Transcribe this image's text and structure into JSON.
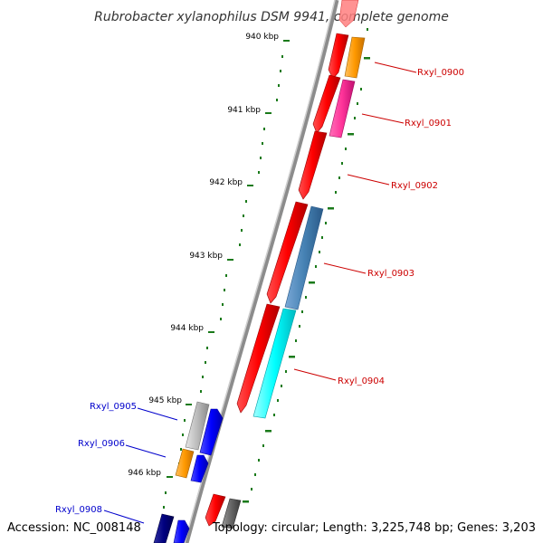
{
  "title": "Rubrobacter xylanophilus DSM 9941, complete genome",
  "footer": {
    "accession": "Accession: NC_008148",
    "summary": "Topology: circular; Length: 3,225,748 bp; Genes: 3,203"
  },
  "kbp_ticks": [
    "940 kbp",
    "941 kbp",
    "942 kbp",
    "943 kbp",
    "944 kbp",
    "945 kbp",
    "946 kbp"
  ],
  "genes": [
    {
      "id": "Rxyl_0900",
      "label": "Rxyl_0900",
      "strand": "reverse",
      "color": "#cc0000"
    },
    {
      "id": "Rxyl_0901",
      "label": "Rxyl_0901",
      "strand": "reverse",
      "color": "#cc0000"
    },
    {
      "id": "Rxyl_0902",
      "label": "Rxyl_0902",
      "strand": "reverse",
      "color": "#cc0000"
    },
    {
      "id": "Rxyl_0903",
      "label": "Rxyl_0903",
      "strand": "reverse",
      "color": "#cc0000"
    },
    {
      "id": "Rxyl_0904",
      "label": "Rxyl_0904",
      "strand": "reverse",
      "color": "#cc0000"
    },
    {
      "id": "Rxyl_0905",
      "label": "Rxyl_0905",
      "strand": "forward",
      "color": "#0000cc"
    },
    {
      "id": "Rxyl_0906",
      "label": "Rxyl_0906",
      "strand": "forward",
      "color": "#0000cc"
    },
    {
      "id": "Rxyl_0908",
      "label": "Rxyl_0908",
      "strand": "forward",
      "color": "#0000cc"
    }
  ],
  "colors": {
    "forward_gene": "#0000ff",
    "reverse_gene": "#ff0000",
    "backbone": "#8c8c8c",
    "tick": "#1a7a1a",
    "cog_orange": "#ff9900",
    "cog_pink": "#ff3399",
    "cog_steelblue": "#4682b4",
    "cog_cyan": "#00ffff",
    "cog_gray": "#bbbbbb",
    "cog_navy": "#000080",
    "cog_darkgray": "#666666"
  }
}
